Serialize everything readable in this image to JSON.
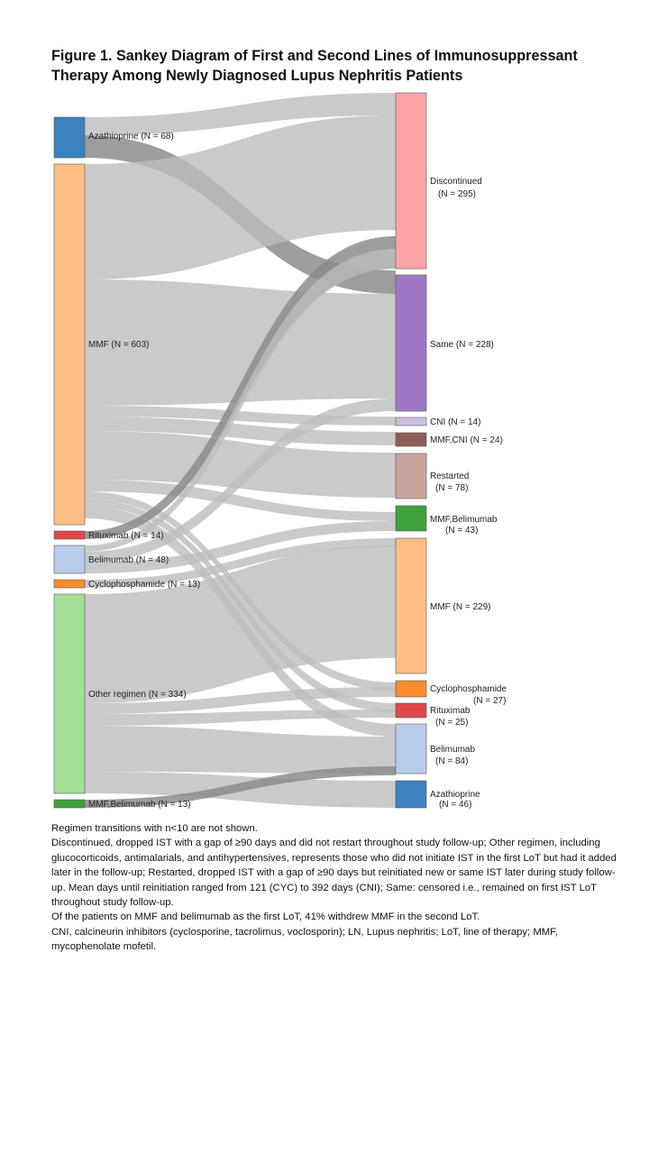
{
  "figure": {
    "title_line1": "Figure 1. Sankey Diagram of First and Second Lines of Immunosuppressant",
    "title_line2": "Therapy Among Newly Diagnosed Lupus Nephritis Patients"
  },
  "sankey": {
    "left_nodes": [
      {
        "id": "L_aza",
        "name": "Azathioprine",
        "n_label": "(N = 68)",
        "color": "#3a82c0"
      },
      {
        "id": "L_mmf",
        "name": "MMF",
        "n_label": "(N = 603)",
        "color": "#fdbf84"
      },
      {
        "id": "L_rtx",
        "name": "Rituximab",
        "n_label": "(N = 14)",
        "color": "#df4848"
      },
      {
        "id": "L_bel",
        "name": "Belimumab",
        "n_label": "(N = 48)",
        "color": "#b8cdeb"
      },
      {
        "id": "L_cyc",
        "name": "Cyclophosphamide",
        "n_label": "(N = 13)",
        "color": "#fb8d2f"
      },
      {
        "id": "L_oth",
        "name": "Other regimen",
        "n_label": "(N = 334)",
        "color": "#a3e097"
      },
      {
        "id": "L_mb",
        "name": "MMF,Belimumab",
        "n_label": "(N = 13)",
        "color": "#3ea23e"
      }
    ],
    "right_nodes": [
      {
        "id": "R_disc",
        "name": "Discontinued",
        "n_label": "(N = 295)",
        "color": "#fea3a6"
      },
      {
        "id": "R_same",
        "name": "Same",
        "n_label": "(N = 228)",
        "color": "#9e78c6"
      },
      {
        "id": "R_cni",
        "name": "CNI",
        "n_label": "(N = 14)",
        "color": "#cfbde0"
      },
      {
        "id": "R_mmfcni",
        "name": "MMF,CNI",
        "n_label": "(N = 24)",
        "color": "#8e5d55"
      },
      {
        "id": "R_rest",
        "name": "Restarted",
        "n_label": "(N = 78)",
        "color": "#c9a49d"
      },
      {
        "id": "R_mb",
        "name": "MMF,Belimumab",
        "n_label": "(N = 43)",
        "color": "#3ea23e"
      },
      {
        "id": "R_mmf",
        "name": "MMF",
        "n_label": "(N = 229)",
        "color": "#fdbf84"
      },
      {
        "id": "R_cyc",
        "name": "Cyclophosphamide",
        "n_label": "(N = 27)",
        "color": "#fb8d2f"
      },
      {
        "id": "R_rtx",
        "name": "Rituximab",
        "n_label": "(N = 25)",
        "color": "#df4848"
      },
      {
        "id": "R_bel",
        "name": "Belimumab",
        "n_label": "(N = 84)",
        "color": "#b8cdeb"
      },
      {
        "id": "R_aza",
        "name": "Azathioprine",
        "n_label": "(N = 46)",
        "color": "#3a82c0"
      }
    ],
    "links": [
      {
        "from": "L_aza",
        "to": "R_disc"
      },
      {
        "from": "L_aza",
        "to": "R_same"
      },
      {
        "from": "L_mmf",
        "to": "R_disc"
      },
      {
        "from": "L_mmf",
        "to": "R_same"
      },
      {
        "from": "L_mmf",
        "to": "R_cni"
      },
      {
        "from": "L_mmf",
        "to": "R_mmfcni"
      },
      {
        "from": "L_mmf",
        "to": "R_rest"
      },
      {
        "from": "L_mmf",
        "to": "R_mb"
      },
      {
        "from": "L_mmf",
        "to": "R_cyc"
      },
      {
        "from": "L_mmf",
        "to": "R_rtx"
      },
      {
        "from": "L_mmf",
        "to": "R_bel"
      },
      {
        "from": "L_rtx",
        "to": "R_disc"
      },
      {
        "from": "L_bel",
        "to": "R_disc"
      },
      {
        "from": "L_bel",
        "to": "R_same"
      },
      {
        "from": "L_bel",
        "to": "R_mb"
      },
      {
        "from": "L_cyc",
        "to": "R_mmf"
      },
      {
        "from": "L_oth",
        "to": "R_mmf"
      },
      {
        "from": "L_oth",
        "to": "R_cyc"
      },
      {
        "from": "L_oth",
        "to": "R_rtx"
      },
      {
        "from": "L_oth",
        "to": "R_bel"
      },
      {
        "from": "L_oth",
        "to": "R_aza"
      },
      {
        "from": "L_mb",
        "to": "R_same"
      }
    ]
  },
  "footnotes": {
    "line1": "Regimen transitions with n<10 are not shown.",
    "line2": "Discontinued, dropped IST with a gap of ≥90 days and did not restart throughout study follow-up; Other regimen, including glucocorticoids, antimalarials, and antihypertensives, represents those who did not initiate IST in the first LoT but had it added later in the follow-up; Restarted, dropped IST with a gap of ≥90 days but reinitiated new or same IST later during study follow-up. Mean days until reinitiation ranged from 121 (CYC) to 392 days (CNI); Same: censored i.e., remained on first IST LoT throughout study follow-up.",
    "line3": "Of the patients on MMF and belimumab as the first LoT, 41% withdrew MMF in the second LoT.",
    "line4": "CNI, calcineurin inhibitors (cyclosporine, tacrolimus, voclosporin); LN, Lupus nephritis; LoT, line of therapy; MMF, mycophenolate mofetil."
  }
}
